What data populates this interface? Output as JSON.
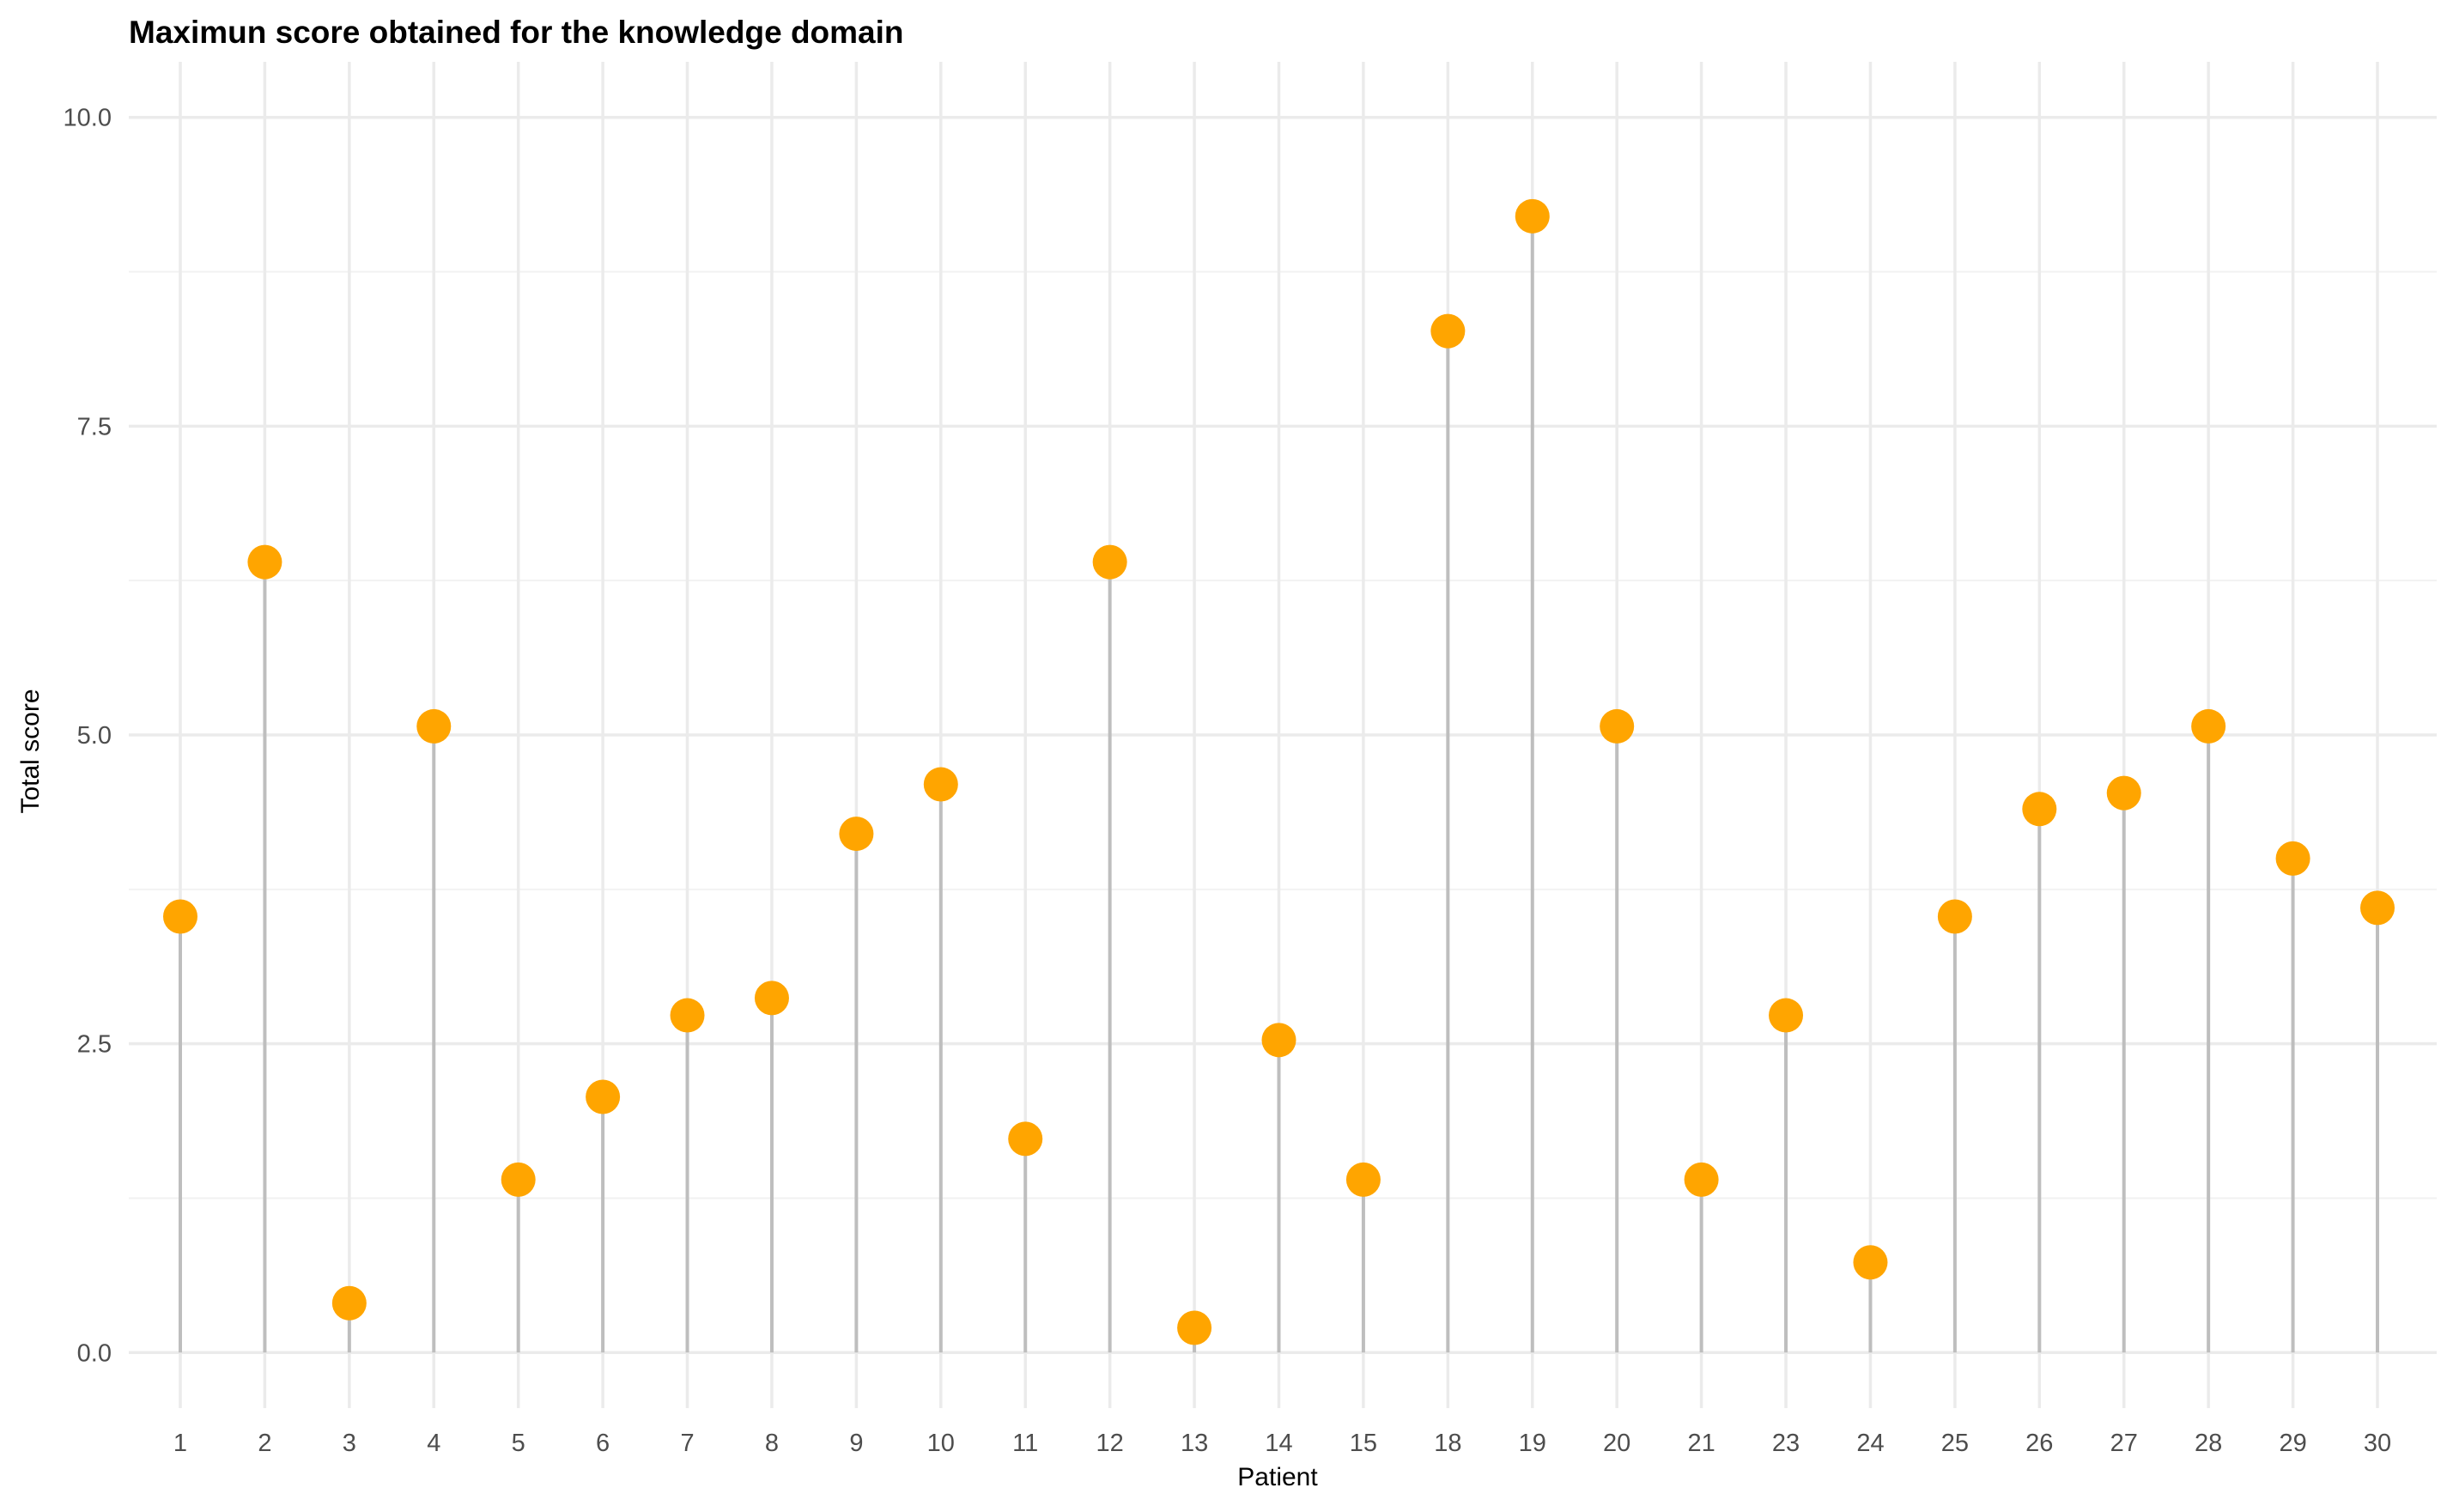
{
  "chart_data": {
    "type": "lollipop",
    "title": "Maximun score obtained for the knowledge domain",
    "xlabel": "Patient",
    "ylabel": "Total score",
    "categories": [
      "1",
      "2",
      "3",
      "4",
      "5",
      "6",
      "7",
      "8",
      "9",
      "10",
      "11",
      "12",
      "13",
      "14",
      "15",
      "18",
      "19",
      "20",
      "21",
      "23",
      "24",
      "25",
      "26",
      "27",
      "28",
      "29",
      "30"
    ],
    "values": [
      3.53,
      6.4,
      0.4,
      5.07,
      1.4,
      2.07,
      2.73,
      2.87,
      4.2,
      4.6,
      1.73,
      6.4,
      0.2,
      2.53,
      1.4,
      8.27,
      9.2,
      5.07,
      1.4,
      2.73,
      0.73,
      3.53,
      4.4,
      4.53,
      5.07,
      4.0,
      3.6
    ],
    "ylim": [
      -0.45,
      10.45
    ],
    "yticks": [
      0.0,
      2.5,
      5.0,
      7.5,
      10.0
    ],
    "ytick_labels": [
      "0.0",
      "2.5",
      "5.0",
      "7.5",
      "10.0"
    ],
    "grid": true,
    "colors": {
      "point": "#FFA500",
      "stem": "#bebebe",
      "grid_major": "#ebebeb",
      "grid_minor": "#f2f2f2",
      "tick_text": "#4d4d4d"
    }
  }
}
